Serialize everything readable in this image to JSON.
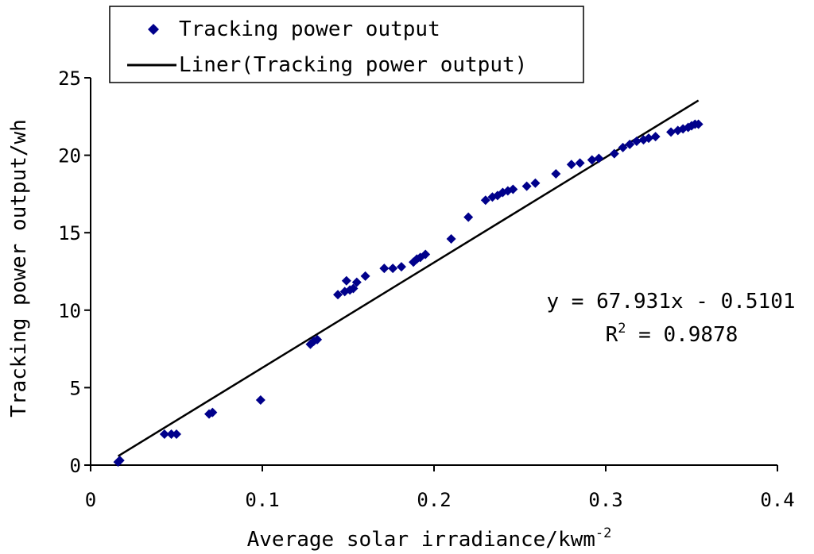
{
  "chart_data": {
    "type": "scatter",
    "xlabel": "Average solar irradiance/kwm",
    "xlabel_sup": "-2",
    "ylabel": "Tracking power output/wh",
    "xlim": [
      0,
      0.4
    ],
    "ylim": [
      0,
      25
    ],
    "xticks": [
      "0",
      "0.1",
      "0.2",
      "0.3",
      "0.4"
    ],
    "yticks": [
      "0",
      "5",
      "10",
      "15",
      "20",
      "25"
    ],
    "legend_position": "top-left",
    "series": [
      {
        "name": "Tracking power output",
        "color": "#00008b",
        "marker": "diamond",
        "points": [
          [
            0.016,
            0.2
          ],
          [
            0.017,
            0.3
          ],
          [
            0.043,
            2.0
          ],
          [
            0.047,
            2.0
          ],
          [
            0.05,
            2.0
          ],
          [
            0.069,
            3.3
          ],
          [
            0.071,
            3.4
          ],
          [
            0.099,
            4.2
          ],
          [
            0.128,
            7.8
          ],
          [
            0.13,
            8.0
          ],
          [
            0.132,
            8.1
          ],
          [
            0.144,
            11.0
          ],
          [
            0.148,
            11.2
          ],
          [
            0.149,
            11.9
          ],
          [
            0.151,
            11.3
          ],
          [
            0.153,
            11.4
          ],
          [
            0.155,
            11.8
          ],
          [
            0.16,
            12.2
          ],
          [
            0.171,
            12.7
          ],
          [
            0.176,
            12.7
          ],
          [
            0.181,
            12.8
          ],
          [
            0.188,
            13.1
          ],
          [
            0.19,
            13.3
          ],
          [
            0.192,
            13.4
          ],
          [
            0.195,
            13.6
          ],
          [
            0.21,
            14.6
          ],
          [
            0.22,
            16.0
          ],
          [
            0.23,
            17.1
          ],
          [
            0.234,
            17.3
          ],
          [
            0.237,
            17.4
          ],
          [
            0.24,
            17.6
          ],
          [
            0.243,
            17.7
          ],
          [
            0.246,
            17.8
          ],
          [
            0.254,
            18.0
          ],
          [
            0.259,
            18.2
          ],
          [
            0.271,
            18.8
          ],
          [
            0.28,
            19.4
          ],
          [
            0.285,
            19.5
          ],
          [
            0.292,
            19.7
          ],
          [
            0.296,
            19.8
          ],
          [
            0.305,
            20.1
          ],
          [
            0.31,
            20.5
          ],
          [
            0.314,
            20.7
          ],
          [
            0.318,
            20.9
          ],
          [
            0.322,
            21.0
          ],
          [
            0.325,
            21.1
          ],
          [
            0.329,
            21.2
          ],
          [
            0.338,
            21.5
          ],
          [
            0.342,
            21.6
          ],
          [
            0.345,
            21.7
          ],
          [
            0.348,
            21.8
          ],
          [
            0.35,
            21.9
          ],
          [
            0.352,
            22.0
          ],
          [
            0.354,
            22.0
          ]
        ]
      },
      {
        "name": "Liner(Tracking power output)",
        "type": "line",
        "color": "#000000",
        "slope": 67.931,
        "intercept": -0.5101,
        "x_range": [
          0.016,
          0.354
        ]
      }
    ],
    "annotations": {
      "equation": "y = 67.931x - 0.5101",
      "r2_base": "R",
      "r2_sup": "2",
      "r2_rest": " = 0.9878"
    }
  }
}
